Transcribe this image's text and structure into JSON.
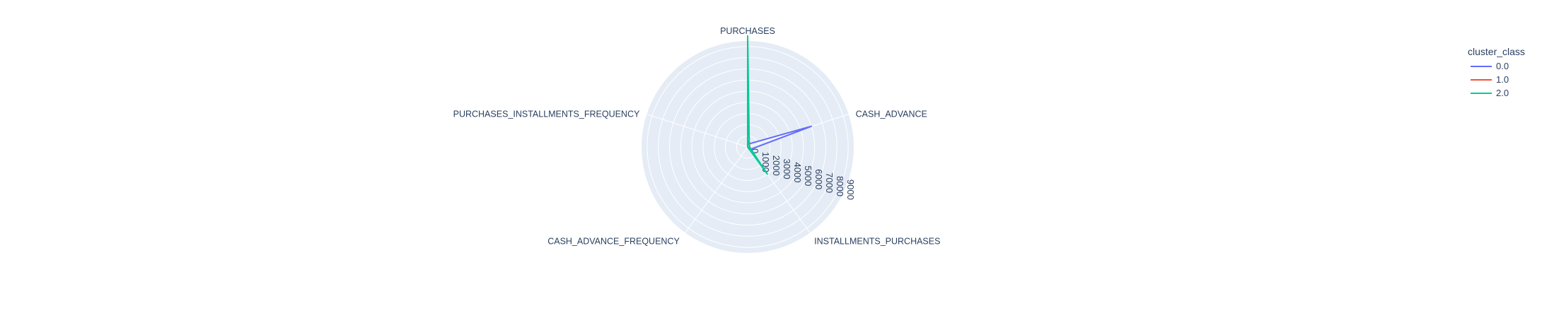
{
  "chart_data": {
    "type": "radar",
    "axes": [
      "PURCHASES",
      "CASH_ADVANCE",
      "INSTALLMENTS_PURCHASES",
      "CASH_ADVANCE_FREQUENCY",
      "PURCHASES_INSTALLMENTS_FREQUENCY"
    ],
    "radial_ticks": [
      "0",
      "1000",
      "2000",
      "3000",
      "4000",
      "5000",
      "6000",
      "7000",
      "8000",
      "9000"
    ],
    "radial_range": [
      0,
      9500
    ],
    "grid": true,
    "legend": {
      "title": "cluster_class",
      "placement": "top-right"
    },
    "series": [
      {
        "name": "0.0",
        "color": "#636efa",
        "values": [
          250,
          6000,
          300,
          0.5,
          0.3
        ]
      },
      {
        "name": "1.0",
        "color": "#ef553b",
        "values": [
          600,
          200,
          200,
          0.1,
          0.5
        ]
      },
      {
        "name": "2.0",
        "color": "#00cc96",
        "values": [
          10000,
          150,
          3000,
          0.1,
          0.8
        ]
      }
    ],
    "background_color": "#e5ecf6",
    "grid_color": "#ffffff"
  }
}
